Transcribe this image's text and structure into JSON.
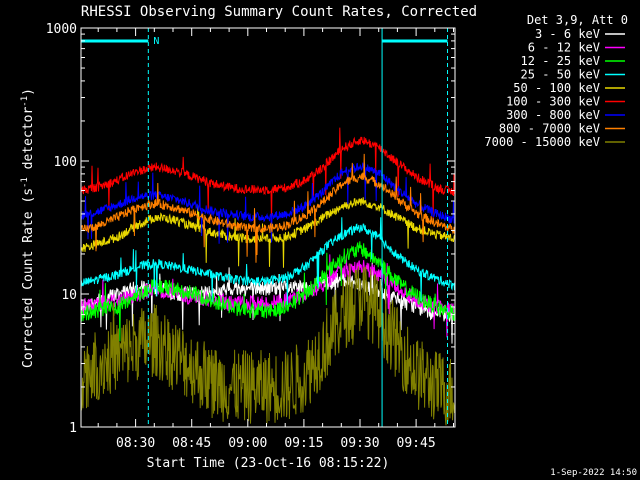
{
  "chart_data": {
    "type": "line",
    "title": "RHESSI Observing Summary Count Rates, Corrected",
    "xlabel": "Start Time (23-Oct-16 08:15:22)",
    "ylabel": "Corrected Count Rate (s⁻¹ detector⁻¹)",
    "ylabel_main": "Corrected Count Rate (s",
    "ylabel_exp1": "-1",
    "ylabel_mid": " detector",
    "ylabel_exp2": "-1",
    "ylabel_end": ")",
    "y_scale": "log",
    "ylim": [
      1,
      1000
    ],
    "xlim_minutes": [
      0,
      100
    ],
    "x_ticks": [
      {
        "label": "08:30",
        "minute": 14.6
      },
      {
        "label": "08:45",
        "minute": 29.6
      },
      {
        "label": "09:00",
        "minute": 44.6
      },
      {
        "label": "09:15",
        "minute": 59.6
      },
      {
        "label": "09:30",
        "minute": 74.6
      },
      {
        "label": "09:45",
        "minute": 89.6
      }
    ],
    "y_ticks": [
      {
        "label": "1",
        "value": 1
      },
      {
        "label": "10",
        "value": 10
      },
      {
        "label": "100",
        "value": 100
      },
      {
        "label": "1000",
        "value": 1000
      }
    ],
    "legend_title": "Det 3,9, Att 0",
    "legend_position": "right",
    "grid": false,
    "x_sample_minutes": [
      0,
      5,
      10,
      15,
      20,
      25,
      30,
      35,
      40,
      45,
      50,
      55,
      60,
      65,
      70,
      75,
      80,
      85,
      90,
      95,
      100
    ],
    "series": [
      {
        "name": "3 - 6 keV",
        "color": "#ffffff",
        "values": [
          7.5,
          9,
          10,
          11,
          11,
          10,
          10,
          10,
          11,
          11,
          11,
          11,
          11,
          12,
          13,
          12,
          10,
          9,
          8,
          7,
          7
        ]
      },
      {
        "name": "6 - 12 keV",
        "color": "#ff00ff",
        "values": [
          8,
          8.5,
          9,
          10,
          11,
          10,
          9.5,
          9,
          8.5,
          8.5,
          8.5,
          9,
          10,
          12,
          15,
          16,
          14,
          11,
          9,
          8,
          7.5
        ]
      },
      {
        "name": "12 - 25 keV",
        "color": "#00ff00",
        "values": [
          7,
          7.5,
          8,
          10,
          11.5,
          11,
          10,
          9,
          8,
          7.5,
          7.5,
          8,
          10,
          14,
          19,
          22,
          17,
          12,
          9.5,
          8,
          7
        ]
      },
      {
        "name": "25 - 50 keV",
        "color": "#00ffff",
        "values": [
          12,
          13,
          14,
          16,
          17,
          16,
          15,
          14,
          13,
          12.5,
          12.5,
          13.5,
          16,
          22,
          28,
          32,
          26,
          19,
          15,
          13,
          11.5
        ]
      },
      {
        "name": "50 - 100 keV",
        "color": "#e8d800",
        "values": [
          22,
          24,
          27,
          33,
          38,
          36,
          32,
          29,
          27,
          26,
          26,
          27,
          31,
          38,
          46,
          50,
          45,
          37,
          31,
          28,
          26
        ]
      },
      {
        "name": "100 - 300 keV",
        "color": "#ff0000",
        "values": [
          60,
          64,
          72,
          84,
          90,
          85,
          76,
          68,
          63,
          61,
          61,
          63,
          72,
          92,
          125,
          145,
          125,
          95,
          75,
          63,
          58
        ]
      },
      {
        "name": "300 - 800 keV",
        "color": "#0000ff",
        "values": [
          39,
          42,
          47,
          54,
          55,
          52,
          47,
          42,
          40,
          38,
          38,
          40,
          46,
          60,
          83,
          92,
          80,
          60,
          47,
          40,
          36
        ]
      },
      {
        "name": "800 - 7000 keV",
        "color": "#ff8000",
        "values": [
          30,
          33,
          38,
          45,
          48,
          45,
          40,
          36,
          33,
          31,
          31,
          33,
          39,
          50,
          68,
          77,
          67,
          51,
          40,
          34,
          30
        ]
      },
      {
        "name": "7000 - 15000 keV",
        "color": "#808000",
        "values": [
          2.5,
          3,
          3.5,
          4.2,
          4.5,
          3.5,
          2.8,
          2.2,
          2,
          2,
          2,
          2,
          2.5,
          4,
          7,
          10,
          7,
          4,
          2.5,
          2,
          1.8
        ]
      }
    ],
    "annotations": [
      {
        "label": "N",
        "color": "#00ffff"
      }
    ],
    "vertical_markers_minutes": [
      {
        "minute": 0,
        "style": "solid",
        "color": "#00ffff"
      },
      {
        "minute": 18,
        "style": "dashed",
        "color": "#00ffff"
      },
      {
        "minute": 80.5,
        "style": "solid",
        "color": "#00ffff"
      },
      {
        "minute": 98,
        "style": "dashed",
        "color": "#00ffff"
      }
    ],
    "status_bars_minutes": [
      {
        "start": 0,
        "end": 18,
        "color": "#00ffff"
      },
      {
        "start": 80.5,
        "end": 98,
        "color": "#00ffff"
      }
    ],
    "timestamp": "1-Sep-2022 14:50"
  }
}
